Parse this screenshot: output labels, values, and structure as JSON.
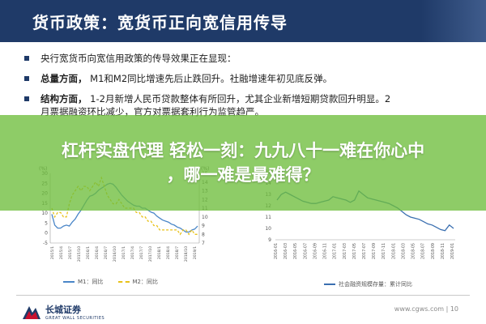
{
  "header": {
    "title": "货币政策：宽货币正向宽信用传导"
  },
  "bullets": [
    {
      "bold": "",
      "text": "央行宽货币向宽信用政策的传导效果正在显现："
    },
    {
      "bold": "总量方面，",
      "text": "M1和M2同比增速先后止跌回升。社融增速年初见底反弹。"
    },
    {
      "bold": "结构方面，",
      "text": "1-2月新增人民币贷款整体有所回升，尤其企业新增短期贷款回升明显。2",
      "cont": "月票据融资环比减少，官方对票据套利行为监管趋严。"
    }
  ],
  "overlay": {
    "line1": "杠杆实盘代理 轻松一刻：九九八十一难在你心中",
    "line2": "，哪一难是最难得？"
  },
  "colors": {
    "header_bg": "#1f3a68",
    "m1": "#4a86c8",
    "m2": "#e8c21a",
    "social": "#3a6fb0",
    "overlay": "#6ebe3c"
  },
  "chart_data": [
    {
      "type": "line",
      "title": "",
      "left_axis_label": "(%)",
      "right_axis_label": "(%)",
      "left_ylim": [
        -5,
        30
      ],
      "left_ticks": [
        "30",
        "25",
        "20",
        "15",
        "10",
        "5",
        "0",
        "-5"
      ],
      "right_ylim": [
        7,
        15
      ],
      "right_ticks": [
        "15",
        "14",
        "13",
        "12",
        "11",
        "10",
        "9",
        "8",
        "7"
      ],
      "x_ticks": [
        "2015/1",
        "2015/4",
        "2015/7",
        "2015/10",
        "2016/1",
        "2016/4",
        "2016/7",
        "2016/10",
        "2017/1",
        "2017/4",
        "2017/7",
        "2017/10",
        "2018/1",
        "2018/4",
        "2018/7",
        "2018/10",
        "2019/1"
      ],
      "series": [
        {
          "name": "M1：同比",
          "axis": "left",
          "values": [
            9.5,
            4.0,
            2.5,
            2.5,
            3.5,
            4.0,
            3.5,
            5.5,
            7.0,
            9.5,
            11.5,
            14.0,
            16.5,
            18.5,
            19.0,
            20.0,
            21.5,
            22.5,
            23.5,
            24.5,
            25.0,
            24.5,
            23.0,
            21.0,
            19.0,
            17.5,
            16.0,
            15.0,
            14.0,
            13.5,
            13.5,
            12.5,
            12.5,
            11.5,
            10.5,
            10.0,
            8.5,
            7.5,
            6.5,
            6.0,
            5.5,
            4.5,
            4.0,
            3.0,
            2.5,
            1.5,
            0.5,
            0.5,
            1.5,
            2.0,
            3.5
          ]
        },
        {
          "name": "M2：同比",
          "axis": "right",
          "values": [
            11.0,
            10.0,
            10.5,
            10.5,
            10.0,
            10.0,
            11.5,
            12.5,
            13.0,
            13.5,
            13.0,
            13.5,
            13.5,
            13.0,
            13.5,
            14.0,
            13.5,
            14.5,
            13.5,
            12.5,
            12.0,
            11.5,
            11.5,
            12.0,
            11.5,
            11.0,
            11.0,
            11.0,
            11.0,
            10.5,
            10.5,
            10.0,
            10.0,
            9.5,
            9.5,
            9.0,
            9.0,
            8.5,
            8.5,
            8.5,
            8.5,
            8.5,
            8.5,
            8.5,
            8.0,
            8.5,
            8.5,
            8.0,
            8.5,
            8.0,
            8.0
          ]
        }
      ]
    },
    {
      "type": "line",
      "title": "",
      "ylim": [
        9,
        15
      ],
      "y_ticks": [
        "15",
        "14",
        "13",
        "12",
        "11",
        "10",
        "9"
      ],
      "x_ticks": [
        "2016-01",
        "2016-03",
        "2016-05",
        "2016-07",
        "2016-09",
        "2016-11",
        "2017-01",
        "2017-03",
        "2017-05",
        "2017-07",
        "2017-09",
        "2017-11",
        "2018-01",
        "2018-03",
        "2018-05",
        "2018-07",
        "2018-09",
        "2018-11",
        "2019-01"
      ],
      "series": [
        {
          "name": "社会融资规模存量：累计同比",
          "values": [
            12.5,
            13.0,
            13.2,
            13.0,
            12.8,
            12.6,
            12.4,
            12.3,
            12.2,
            12.2,
            12.3,
            12.4,
            12.5,
            12.8,
            12.7,
            12.6,
            12.5,
            12.3,
            12.5,
            13.3,
            13.0,
            12.7,
            12.6,
            12.5,
            12.4,
            12.3,
            12.2,
            12.0,
            11.8,
            11.5,
            11.2,
            11.0,
            10.9,
            10.8,
            10.6,
            10.4,
            10.3,
            10.1,
            9.9,
            9.8,
            10.3,
            10.0
          ]
        }
      ]
    }
  ],
  "legend1": {
    "m1": "M1：同比",
    "m2": "M2：同比"
  },
  "legend2": {
    "social": "社会融资规模存量：累计同比"
  },
  "footer": {
    "logo_cn": "长城证券",
    "logo_en": "GREAT WALL SECURITIES",
    "right": "www.cgws.com | 10"
  }
}
